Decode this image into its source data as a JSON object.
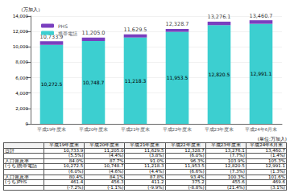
{
  "chart_data": {
    "type": "bar",
    "stacked": true,
    "categories": [
      "平成19年度末",
      "平成20年度末",
      "平成21年度末",
      "平成22年度末",
      "平成23年度末",
      "平成24年6月末"
    ],
    "series": [
      {
        "name": "携帯電話",
        "color": "#3ccfd0",
        "values": [
          10272.5,
          10748.7,
          11218.3,
          11953.5,
          12820.5,
          12991.1
        ],
        "data_labels": true,
        "value_labels": [
          "10,272.5",
          "10,748.7",
          "11,218.3",
          "11,953.5",
          "12,820.5",
          "12,991.1"
        ]
      },
      {
        "name": "PHS",
        "color": "#7a3fbf",
        "values": [
          461.4,
          456.3,
          411.2,
          375.2,
          455.6,
          469.6
        ]
      }
    ],
    "totals": [
      10733.9,
      11205.0,
      11629.5,
      12328.7,
      13276.1,
      13460.7
    ],
    "total_labels": [
      "10,733.9",
      "11,205.0",
      "11,629.5",
      "12,328.7",
      "13,276.1",
      "13,460.7"
    ],
    "ylabel": "（万加入）",
    "ylim": [
      0,
      14000
    ],
    "yticks": [
      0,
      {
        "value": 2000,
        "label": "2,000"
      },
      {
        "value": 4000,
        "label": "4,000"
      },
      {
        "value": 6000,
        "label": "6,000"
      },
      {
        "value": 8000,
        "label": "8,000"
      },
      {
        "value": 10000,
        "label": "10,000"
      },
      {
        "value": 12000,
        "label": "12,000"
      },
      {
        "value": 14000,
        "label": "14,000"
      }
    ],
    "grid": true,
    "legend": "upper left"
  },
  "table": {
    "unit": "(単位:万加入)",
    "columns": [
      "平成19年度末",
      "平成20年度末",
      "平成21年度末",
      "平成22年度末",
      "平成23年度末",
      "平成24年6月末"
    ],
    "rows": [
      {
        "label": "合計",
        "cells": [
          "10,733.9",
          "11,205.0",
          "11,629.5",
          "12,328.7",
          "13,276.1",
          "13,460.7"
        ]
      },
      {
        "label": null,
        "cells": [
          "(5.5%)",
          "(4.4%)",
          "(3.8%)",
          "(6.0%)",
          "(7.7%)",
          "(1.4%)"
        ]
      },
      {
        "label": "人口普及率",
        "cells": [
          "84.0%",
          "87.7%",
          "91.0%",
          "96.3%",
          "103.9%",
          "105.3%"
        ]
      },
      {
        "label": "(うち)携帯電話",
        "cells": [
          "10,272.5",
          "10,748.7",
          "11,218.3",
          "11,953.5",
          "12,820.5",
          "12,991.1"
        ]
      },
      {
        "label": null,
        "cells": [
          "(6.0%)",
          "(4.6%)",
          "(4.4%)",
          "(6.6%)",
          "(7.3%)",
          "(1.3%)"
        ]
      },
      {
        "label": "人口普及率",
        "cells": [
          "80.4%",
          "84.1%",
          "87.8%",
          "93.4%",
          "100.3%",
          "101.6%"
        ]
      },
      {
        "label": "(うち)PHS",
        "cells": [
          "461.4",
          "456.3",
          "411.2",
          "375.2",
          "455.6",
          "469.6"
        ]
      },
      {
        "label": null,
        "cells": [
          "(-7.2%)",
          "(-1.1%)",
          "(-9.9%)",
          "(-8.8%)",
          "(21.4%)",
          "(3.1%)"
        ]
      }
    ]
  }
}
